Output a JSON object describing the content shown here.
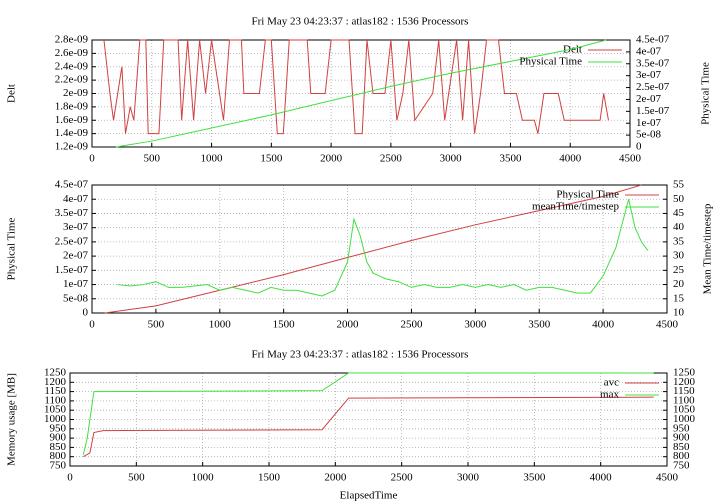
{
  "chart_data": [
    {
      "type": "line",
      "title": "Fri May 23 04:23:37 : atlas182 : 1536 Processors",
      "ylabel": "Delt",
      "y2label": "Physical Time",
      "legend": "top-right",
      "grid": true,
      "xlim": [
        0,
        4500
      ],
      "xticks": [
        0,
        500,
        1000,
        1500,
        2000,
        2500,
        3000,
        3500,
        4000,
        4500
      ],
      "ylim": [
        1.2e-09,
        2.8e-09
      ],
      "yticks": [
        {
          "value": 1.2e-09,
          "label": "1.2e-09"
        },
        {
          "value": 1.4e-09,
          "label": "1.4e-09"
        },
        {
          "value": 1.6e-09,
          "label": "1.6e-09"
        },
        {
          "value": 1.8e-09,
          "label": "1.8e-09"
        },
        {
          "value": 2e-09,
          "label": "2e-09"
        },
        {
          "value": 2.2e-09,
          "label": "2.2e-09"
        },
        {
          "value": 2.4e-09,
          "label": "2.4e-09"
        },
        {
          "value": 2.6e-09,
          "label": "2.6e-09"
        },
        {
          "value": 2.8e-09,
          "label": "2.8e-09"
        }
      ],
      "y2lim": [
        0,
        4.5e-07
      ],
      "y2ticks": [
        0,
        {
          "value": 5e-08,
          "label": "5e-08"
        },
        {
          "value": 1e-07,
          "label": "1e-07"
        },
        {
          "value": 1.5e-07,
          "label": "1.5e-07"
        },
        {
          "value": 2e-07,
          "label": "2e-07"
        },
        {
          "value": 2.5e-07,
          "label": "2.5e-07"
        },
        {
          "value": 3e-07,
          "label": "3e-07"
        },
        {
          "value": 3.5e-07,
          "label": "3.5e-07"
        },
        {
          "value": 4e-07,
          "label": "4e-07"
        },
        {
          "value": 4.5e-07,
          "label": "4.5e-07"
        }
      ],
      "series": [
        {
          "name": "Delt",
          "color": "#d04040",
          "x": [
            100,
            150,
            180,
            250,
            280,
            320,
            350,
            400,
            450,
            470,
            560,
            600,
            720,
            750,
            800,
            850,
            900,
            950,
            1000,
            1100,
            1150,
            1250,
            1270,
            1400,
            1450,
            1500,
            1550,
            1600,
            1650,
            1800,
            1830,
            1950,
            2000,
            2150,
            2200,
            2260,
            2300,
            2350,
            2450,
            2500,
            2550,
            2600,
            2650,
            2700,
            2850,
            2900,
            2950,
            3050,
            3100,
            3150,
            3200,
            3250,
            3300,
            3400,
            3450,
            3550,
            3600,
            3700,
            3730,
            3780,
            3900,
            3950,
            4250,
            4280,
            4320
          ],
          "values": [
            2.8e-09,
            2e-09,
            1.6e-09,
            2.4e-09,
            1.4e-09,
            1.8e-09,
            1.6e-09,
            2.8e-09,
            2.8e-09,
            1.4e-09,
            1.4e-09,
            2.8e-09,
            2.8e-09,
            1.6e-09,
            2.8e-09,
            1.6e-09,
            2.8e-09,
            2e-09,
            2.8e-09,
            1.6e-09,
            2.8e-09,
            2.8e-09,
            2e-09,
            2e-09,
            2.8e-09,
            2.8e-09,
            1.4e-09,
            1.4e-09,
            2.8e-09,
            2.8e-09,
            2e-09,
            2e-09,
            2.8e-09,
            2.8e-09,
            1.4e-09,
            1.4e-09,
            2.8e-09,
            2e-09,
            2e-09,
            2.8e-09,
            1.6e-09,
            2e-09,
            2.8e-09,
            1.6e-09,
            2e-09,
            2.8e-09,
            1.6e-09,
            2.8e-09,
            1.6e-09,
            2.8e-09,
            1.4e-09,
            2e-09,
            2.8e-09,
            2.8e-09,
            2e-09,
            2e-09,
            1.6e-09,
            1.6e-09,
            1.4e-09,
            2e-09,
            2e-09,
            1.6e-09,
            1.6e-09,
            2e-09,
            1.6e-09
          ]
        },
        {
          "name": "Physical Time",
          "color": "#40e040",
          "axis": "y2",
          "x": [
            200,
            500,
            1000,
            1500,
            2000,
            2500,
            3000,
            3500,
            4000,
            4300
          ],
          "values": [
            0,
            2.5e-08,
            8e-08,
            1.35e-07,
            1.95e-07,
            2.55e-07,
            3.1e-07,
            3.6e-07,
            4.1e-07,
            4.5e-07
          ]
        }
      ]
    },
    {
      "type": "line",
      "ylabel": "Physical Time",
      "y2label": "Mean Time/timestep",
      "legend": "top-right",
      "grid": true,
      "xlim": [
        0,
        4500
      ],
      "xticks": [
        0,
        500,
        1000,
        1500,
        2000,
        2500,
        3000,
        3500,
        4000,
        4500
      ],
      "ylim": [
        0,
        4.5e-07
      ],
      "yticks": [
        0,
        {
          "value": 5e-08,
          "label": "5e-08"
        },
        {
          "value": 1e-07,
          "label": "1e-07"
        },
        {
          "value": 1.5e-07,
          "label": "1.5e-07"
        },
        {
          "value": 2e-07,
          "label": "2e-07"
        },
        {
          "value": 2.5e-07,
          "label": "2.5e-07"
        },
        {
          "value": 3e-07,
          "label": "3e-07"
        },
        {
          "value": 3.5e-07,
          "label": "3.5e-07"
        },
        {
          "value": 4e-07,
          "label": "4e-07"
        },
        {
          "value": 4.5e-07,
          "label": "4.5e-07"
        }
      ],
      "y2lim": [
        10,
        55
      ],
      "y2ticks": [
        10,
        15,
        20,
        25,
        30,
        35,
        40,
        45,
        50,
        55
      ],
      "series": [
        {
          "name": "Physical Time",
          "color": "#d04040",
          "x": [
            100,
            500,
            1000,
            1500,
            2000,
            2500,
            3000,
            3500,
            4000,
            4300
          ],
          "values": [
            0,
            2.5e-08,
            8e-08,
            1.35e-07,
            1.95e-07,
            2.55e-07,
            3.1e-07,
            3.6e-07,
            4.1e-07,
            4.5e-07
          ]
        },
        {
          "name": "meanTime/timestep",
          "color": "#40e040",
          "axis": "y2",
          "x": [
            200,
            300,
            400,
            500,
            600,
            700,
            800,
            900,
            1000,
            1100,
            1200,
            1300,
            1400,
            1500,
            1600,
            1700,
            1800,
            1900,
            2000,
            2050,
            2100,
            2150,
            2200,
            2300,
            2400,
            2500,
            2600,
            2700,
            2800,
            2900,
            3000,
            3100,
            3200,
            3300,
            3400,
            3500,
            3600,
            3700,
            3800,
            3900,
            4000,
            4100,
            4200,
            4250,
            4300,
            4350
          ],
          "values": [
            20,
            19.5,
            20,
            21,
            19,
            19,
            19.5,
            20,
            18,
            19,
            18,
            17,
            19,
            18,
            18,
            17,
            16,
            18,
            28,
            43,
            37,
            28,
            24,
            22,
            21,
            19,
            20,
            19,
            19,
            20,
            19,
            20,
            19,
            20,
            18,
            19,
            19,
            18,
            17,
            17,
            23,
            33,
            50,
            40,
            35,
            32
          ]
        }
      ]
    },
    {
      "type": "line",
      "title": "Fri May 23 04:23:37 : atlas182 : 1536 Processors",
      "xlabel": "ElapsedTime",
      "ylabel": "Memory usage [MB]",
      "legend": "top-right",
      "grid": true,
      "xlim": [
        0,
        4500
      ],
      "xticks": [
        0,
        500,
        1000,
        1500,
        2000,
        2500,
        3000,
        3500,
        4000,
        4500
      ],
      "ylim": [
        750,
        1250
      ],
      "yticks": [
        750,
        800,
        850,
        900,
        950,
        1000,
        1050,
        1100,
        1150,
        1200,
        1250
      ],
      "y2lim": [
        750,
        1250
      ],
      "y2ticks": [
        750,
        800,
        850,
        900,
        950,
        1000,
        1050,
        1100,
        1150,
        1200,
        1250
      ],
      "series": [
        {
          "name": "avc",
          "color": "#d04040",
          "x": [
            100,
            150,
            180,
            250,
            1900,
            2100,
            4400
          ],
          "values": [
            800,
            820,
            930,
            940,
            945,
            1115,
            1120
          ]
        },
        {
          "name": "max",
          "color": "#40e040",
          "x": [
            100,
            130,
            180,
            1900,
            2100,
            4400
          ],
          "values": [
            810,
            900,
            1150,
            1155,
            1250,
            1250
          ]
        }
      ]
    }
  ]
}
